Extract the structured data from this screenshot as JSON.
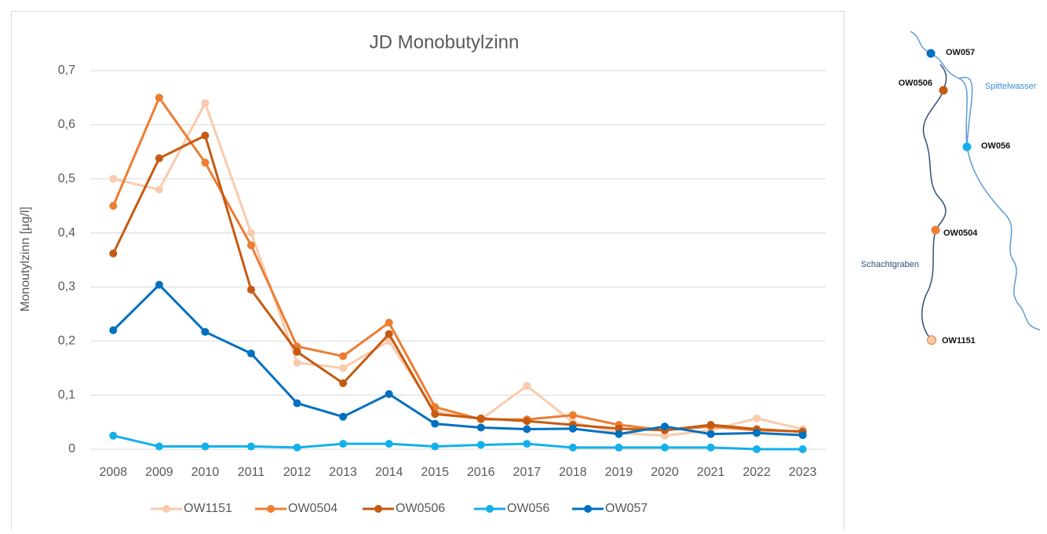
{
  "chart_data": {
    "type": "line",
    "title": "JD Monobutylzinn",
    "y_label": "Monoutylzinn  [µg/l]",
    "categories": [
      "2008",
      "2009",
      "2010",
      "2011",
      "2012",
      "2013",
      "2014",
      "2015",
      "2016",
      "2017",
      "2018",
      "2019",
      "2020",
      "2021",
      "2022",
      "2023"
    ],
    "series": [
      {
        "name": "OW1151",
        "color": "#f8cbad",
        "values": [
          0.5,
          0.48,
          0.64,
          0.4,
          0.16,
          0.15,
          0.2,
          0.07,
          0.055,
          0.117,
          0.05,
          0.03,
          0.025,
          0.035,
          0.057,
          0.037
        ]
      },
      {
        "name": "OW0504",
        "color": "#ed7d31",
        "values": [
          0.45,
          0.65,
          0.53,
          0.377,
          0.19,
          0.172,
          0.234,
          0.078,
          0.055,
          0.055,
          0.063,
          0.045,
          0.035,
          0.042,
          0.035,
          0.033
        ]
      },
      {
        "name": "OW0506",
        "color": "#c55a11",
        "values": [
          0.362,
          0.538,
          0.58,
          0.295,
          0.18,
          0.122,
          0.213,
          0.065,
          0.057,
          0.052,
          0.045,
          0.038,
          0.035,
          0.045,
          0.037,
          0.032
        ]
      },
      {
        "name": "OW056",
        "color": "#14b0ec",
        "values": [
          0.025,
          0.005,
          0.005,
          0.005,
          0.003,
          0.01,
          0.01,
          0.005,
          0.008,
          0.01,
          0.003,
          0.003,
          0.003,
          0.003,
          0,
          0
        ]
      },
      {
        "name": "OW057",
        "color": "#0070c0",
        "values": [
          0.22,
          0.304,
          0.217,
          0.177,
          0.085,
          0.06,
          0.102,
          0.047,
          0.04,
          0.037,
          0.038,
          0.028,
          0.042,
          0.028,
          0.03,
          0.026
        ]
      }
    ],
    "ylim": [
      0,
      0.7
    ],
    "yticks": [
      0,
      {
        "value": 0.1,
        "label": "0,1"
      },
      {
        "value": 0.2,
        "label": "0,2"
      },
      {
        "value": 0.3,
        "label": "0,3"
      },
      {
        "value": 0.4,
        "label": "0,4"
      },
      {
        "value": 0.5,
        "label": "0,5"
      },
      {
        "value": 0.6,
        "label": "0,6"
      },
      {
        "value": 0.7,
        "label": "0,7"
      }
    ],
    "grid": true,
    "legend": "bottom"
  },
  "map": {
    "stations": [
      "OW057",
      "OW0506",
      "OW056",
      "OW0504",
      "OW1151"
    ],
    "rivers": [
      "Spittelwasser",
      "Schachtgraben"
    ]
  }
}
